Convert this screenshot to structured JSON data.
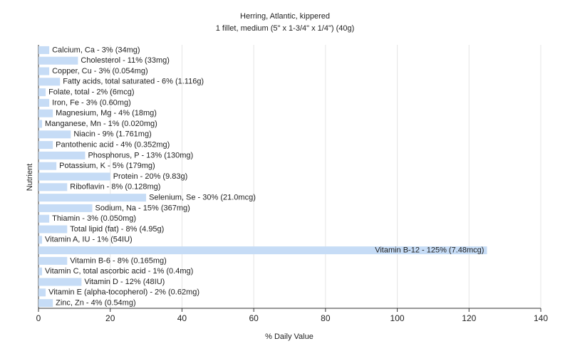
{
  "chart_data": {
    "type": "barh",
    "title": "Herring, Atlantic, kippered",
    "subtitle": "1 fillet, medium (5\" x 1-3/4\" x 1/4\") (40g)",
    "xlabel": "% Daily Value",
    "ylabel": "Nutrient",
    "values": [
      3,
      11,
      3,
      6,
      2,
      3,
      4,
      1,
      9,
      4,
      13,
      5,
      20,
      8,
      30,
      15,
      3,
      8,
      1,
      125,
      8,
      1,
      12,
      2,
      4
    ],
    "value_labels": [
      "Calcium, Ca - 3% (34mg)",
      "Cholesterol - 11% (33mg)",
      "Copper, Cu - 3% (0.054mg)",
      "Fatty acids, total saturated - 6% (1.116g)",
      "Folate, total - 2% (6mcg)",
      "Iron, Fe - 3% (0.60mg)",
      "Magnesium, Mg - 4% (18mg)",
      "Manganese, Mn - 1% (0.020mg)",
      "Niacin - 9% (1.761mg)",
      "Pantothenic acid - 4% (0.352mg)",
      "Phosphorus, P - 13% (130mg)",
      "Potassium, K - 5% (179mg)",
      "Protein - 20% (9.83g)",
      "Riboflavin - 8% (0.128mg)",
      "Selenium, Se - 30% (21.0mcg)",
      "Sodium, Na - 15% (367mg)",
      "Thiamin - 3% (0.050mg)",
      "Total lipid (fat) - 8% (4.95g)",
      "Vitamin A, IU - 1% (54IU)",
      "Vitamin B-12 - 125% (7.48mcg)",
      "Vitamin B-6 - 8% (0.165mg)",
      "Vitamin C, total ascorbic acid - 1% (0.4mg)",
      "Vitamin D - 12% (48IU)",
      "Vitamin E (alpha-tocopherol) - 2% (0.62mg)",
      "Zinc, Zn - 4% (0.54mg)"
    ],
    "color": "#c6dcf6",
    "xlim": [
      0,
      140
    ],
    "xticks": [
      0,
      20,
      40,
      60,
      80,
      100,
      120,
      140
    ],
    "grid": true
  }
}
